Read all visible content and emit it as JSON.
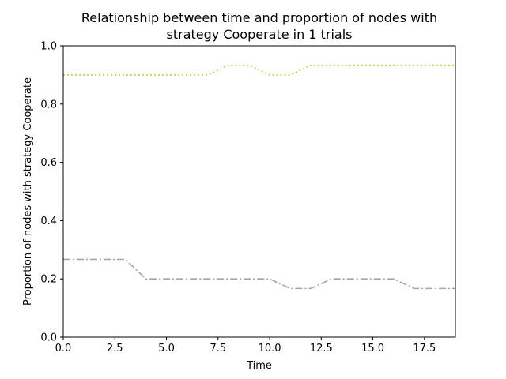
{
  "chart_data": {
    "type": "line",
    "title_lines": [
      "Relationship between time and proportion of nodes with",
      "strategy Cooperate in 1 trials"
    ],
    "xlabel": "Time",
    "ylabel": "Proportion of nodes with strategy Cooperate",
    "xlim": [
      0,
      19
    ],
    "ylim": [
      0.0,
      1.0
    ],
    "xticks": [
      0.0,
      2.5,
      5.0,
      7.5,
      10.0,
      12.5,
      15.0,
      17.5
    ],
    "xtick_labels": [
      "0.0",
      "2.5",
      "5.0",
      "7.5",
      "10.0",
      "12.5",
      "15.0",
      "17.5"
    ],
    "yticks": [
      0.0,
      0.2,
      0.4,
      0.6,
      0.8,
      1.0
    ],
    "ytick_labels": [
      "0.0",
      "0.2",
      "0.4",
      "0.6",
      "0.8",
      "1.0"
    ],
    "grid": false,
    "x": [
      0,
      1,
      2,
      3,
      4,
      5,
      6,
      7,
      8,
      9,
      10,
      11,
      12,
      13,
      14,
      15,
      16,
      17,
      18,
      19
    ],
    "series": [
      {
        "color": "#bcbd22",
        "style": "dotted",
        "values": [
          0.9,
          0.9,
          0.9,
          0.9,
          0.9,
          0.9,
          0.9,
          0.9,
          0.933,
          0.933,
          0.9,
          0.9,
          0.933,
          0.933,
          0.933,
          0.933,
          0.933,
          0.933,
          0.933,
          0.933
        ]
      },
      {
        "color": "#7f7f7f",
        "style": "dashdot",
        "values": [
          0.267,
          0.267,
          0.267,
          0.267,
          0.2,
          0.2,
          0.2,
          0.2,
          0.2,
          0.2,
          0.2,
          0.167,
          0.167,
          0.2,
          0.2,
          0.2,
          0.2,
          0.167,
          0.167,
          0.167
        ]
      }
    ]
  }
}
